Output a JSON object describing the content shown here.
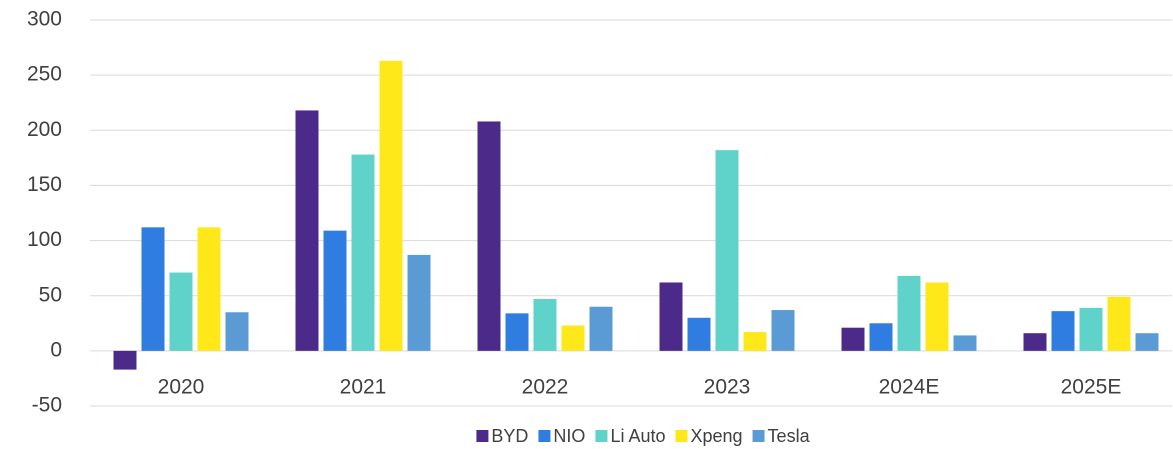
{
  "chart_data": {
    "type": "bar",
    "categories": [
      "2020",
      "2021",
      "2022",
      "2023",
      "2024E",
      "2025E"
    ],
    "series": [
      {
        "name": "BYD",
        "color": "#4b2a8a",
        "values": [
          -17,
          218,
          208,
          62,
          21,
          16
        ]
      },
      {
        "name": "NIO",
        "color": "#2f7de1",
        "values": [
          112,
          109,
          34,
          30,
          25,
          36
        ]
      },
      {
        "name": "Li Auto",
        "color": "#5fd3c9",
        "values": [
          71,
          178,
          47,
          182,
          68,
          39
        ]
      },
      {
        "name": "Xpeng",
        "color": "#ffe81a",
        "values": [
          112,
          263,
          23,
          17,
          62,
          49
        ]
      },
      {
        "name": "Tesla",
        "color": "#5b9bd5",
        "values": [
          35,
          87,
          40,
          37,
          14,
          16
        ]
      }
    ],
    "ylim": [
      -50,
      300
    ],
    "yticks": [
      -50,
      0,
      50,
      100,
      150,
      200,
      250,
      300
    ],
    "grid": true,
    "legend": "bottom"
  }
}
